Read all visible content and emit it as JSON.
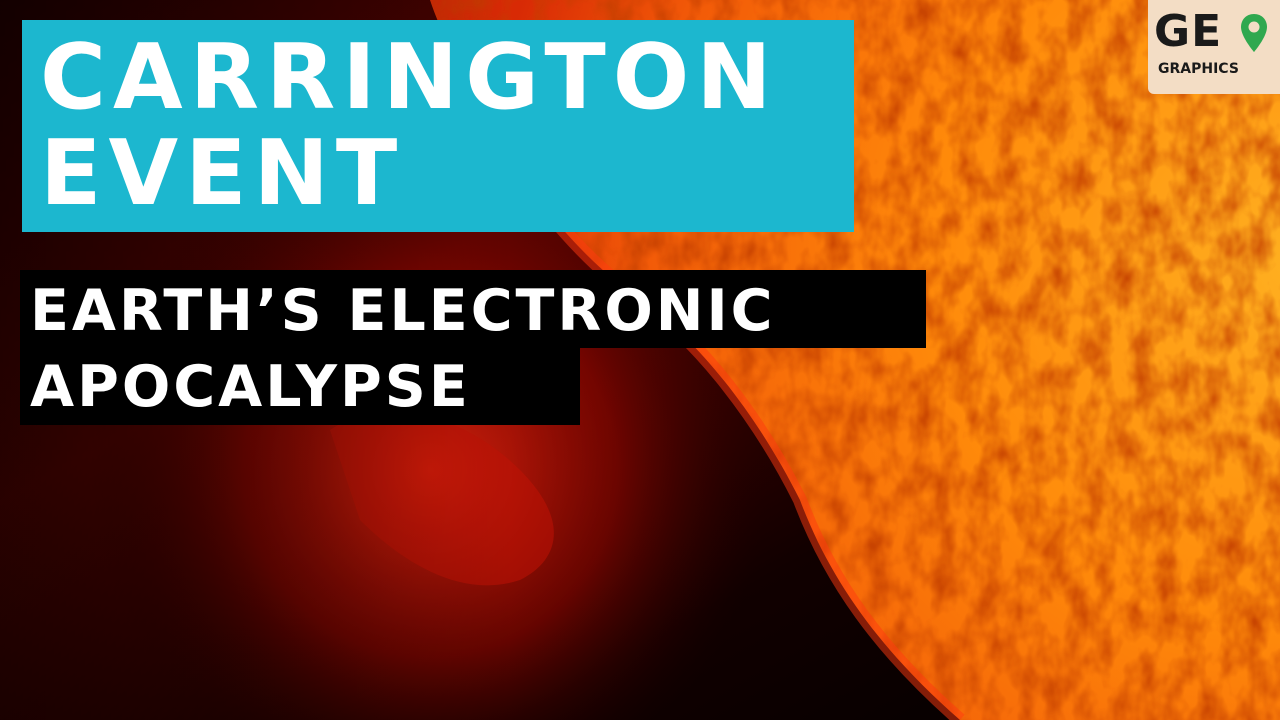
{
  "thumbnail": {
    "title_line_1": "CARRINGTON",
    "title_line_2": "EVENT",
    "subtitle_line_1": "EARTH’S ELECTRONIC",
    "subtitle_line_2": "APOCALYPSE",
    "title_box_color": "#1cb7cf"
  },
  "logo": {
    "word_1": "GE",
    "word_2": "GRAPHICS",
    "pin_icon": "map-pin-icon",
    "pin_color": "#2fa84f"
  },
  "scene": {
    "subject": "sun-surface-photo",
    "colors": [
      "#ff8c00",
      "#e0240a",
      "#000000"
    ]
  }
}
